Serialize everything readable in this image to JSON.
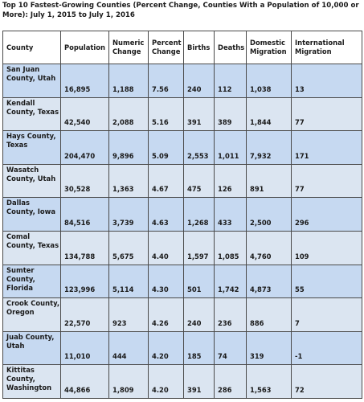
{
  "title": "Top 10 Fastest-Growing Counties (Percent Change, Counties With a Population of 10,000 or More): July 1, 2015 to July 1, 2016",
  "headers": [
    "County",
    "Population",
    "Numeric Change",
    "Percent Change",
    "Births",
    "Deaths",
    "Domestic Migration",
    "International Migration"
  ],
  "rows": [
    [
      "San Juan County, Utah",
      "16,895",
      "1,188",
      "7.56",
      "240",
      "112",
      "1,038",
      "13"
    ],
    [
      "Kendall County, Texas",
      "42,540",
      "2,088",
      "5.16",
      "391",
      "389",
      "1,844",
      "77"
    ],
    [
      "Hays County, Texas",
      "204,470",
      "9,896",
      "5.09",
      "2,553",
      "1,011",
      "7,932",
      "171"
    ],
    [
      "Wasatch County, Utah",
      "30,528",
      "1,363",
      "4.67",
      "475",
      "126",
      "891",
      "77"
    ],
    [
      "Dallas County, Iowa",
      "84,516",
      "3,739",
      "4.63",
      "1,268",
      "433",
      "2,500",
      "296"
    ],
    [
      "Comal County, Texas",
      "134,788",
      "5,675",
      "4.40",
      "1,597",
      "1,085",
      "4,760",
      "109"
    ],
    [
      "Sumter County, Florida",
      "123,996",
      "5,114",
      "4.30",
      "501",
      "1,742",
      "4,873",
      "55"
    ],
    [
      "Crook County, Oregon",
      "22,570",
      "923",
      "4.26",
      "240",
      "236",
      "886",
      "7"
    ],
    [
      "Juab County, Utah",
      "11,010",
      "444",
      "4.20",
      "185",
      "74",
      "319",
      "-1"
    ],
    [
      "Kittitas County, Washington",
      "44,866",
      "1,809",
      "4.20",
      "391",
      "286",
      "1,563",
      "72"
    ]
  ],
  "colors": {
    "row_odd": "#c6d9f1",
    "row_even": "#dbe5f1",
    "border": "#4a4a4a"
  }
}
